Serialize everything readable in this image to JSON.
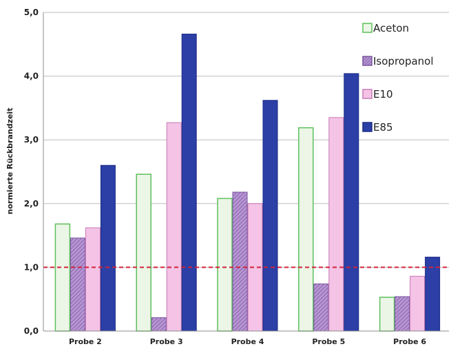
{
  "chart_data": {
    "type": "bar",
    "title": "",
    "xlabel": "",
    "ylabel": "normierte Rückbrandzeit",
    "categories": [
      "Probe 2",
      "Probe 3",
      "Probe 4",
      "Probe 5",
      "Probe 6"
    ],
    "series": [
      {
        "name": "Aceton",
        "values": [
          1.68,
          2.46,
          2.08,
          3.19,
          0.53
        ],
        "fill": "#ecf6e6",
        "stroke": "#5cc05c",
        "pattern": "light"
      },
      {
        "name": "Isopropanol",
        "values": [
          1.46,
          0.21,
          2.18,
          0.74,
          0.54
        ],
        "fill": "#a77fc4",
        "stroke": "#7a56a0",
        "pattern": "hatch"
      },
      {
        "name": "E10",
        "values": [
          1.62,
          3.27,
          2.0,
          3.35,
          0.86
        ],
        "fill": "#f4c3e6",
        "stroke": "#c878b6",
        "pattern": "plain"
      },
      {
        "name": "E85",
        "values": [
          2.6,
          4.66,
          3.62,
          4.04,
          1.16
        ],
        "fill": "#2b3fa6",
        "stroke": "#1b2b86",
        "pattern": "solid"
      }
    ],
    "ylim": [
      0,
      5
    ],
    "yticks": [
      "0,0",
      "1,0",
      "2,0",
      "3,0",
      "4,0",
      "5,0"
    ],
    "ytick_values": [
      0,
      1,
      2,
      3,
      4,
      5
    ],
    "grid": true,
    "reference_line": {
      "value": 1.0,
      "color": "#d2233a",
      "style": "dashed"
    },
    "legend": {
      "position": "top-right"
    }
  }
}
